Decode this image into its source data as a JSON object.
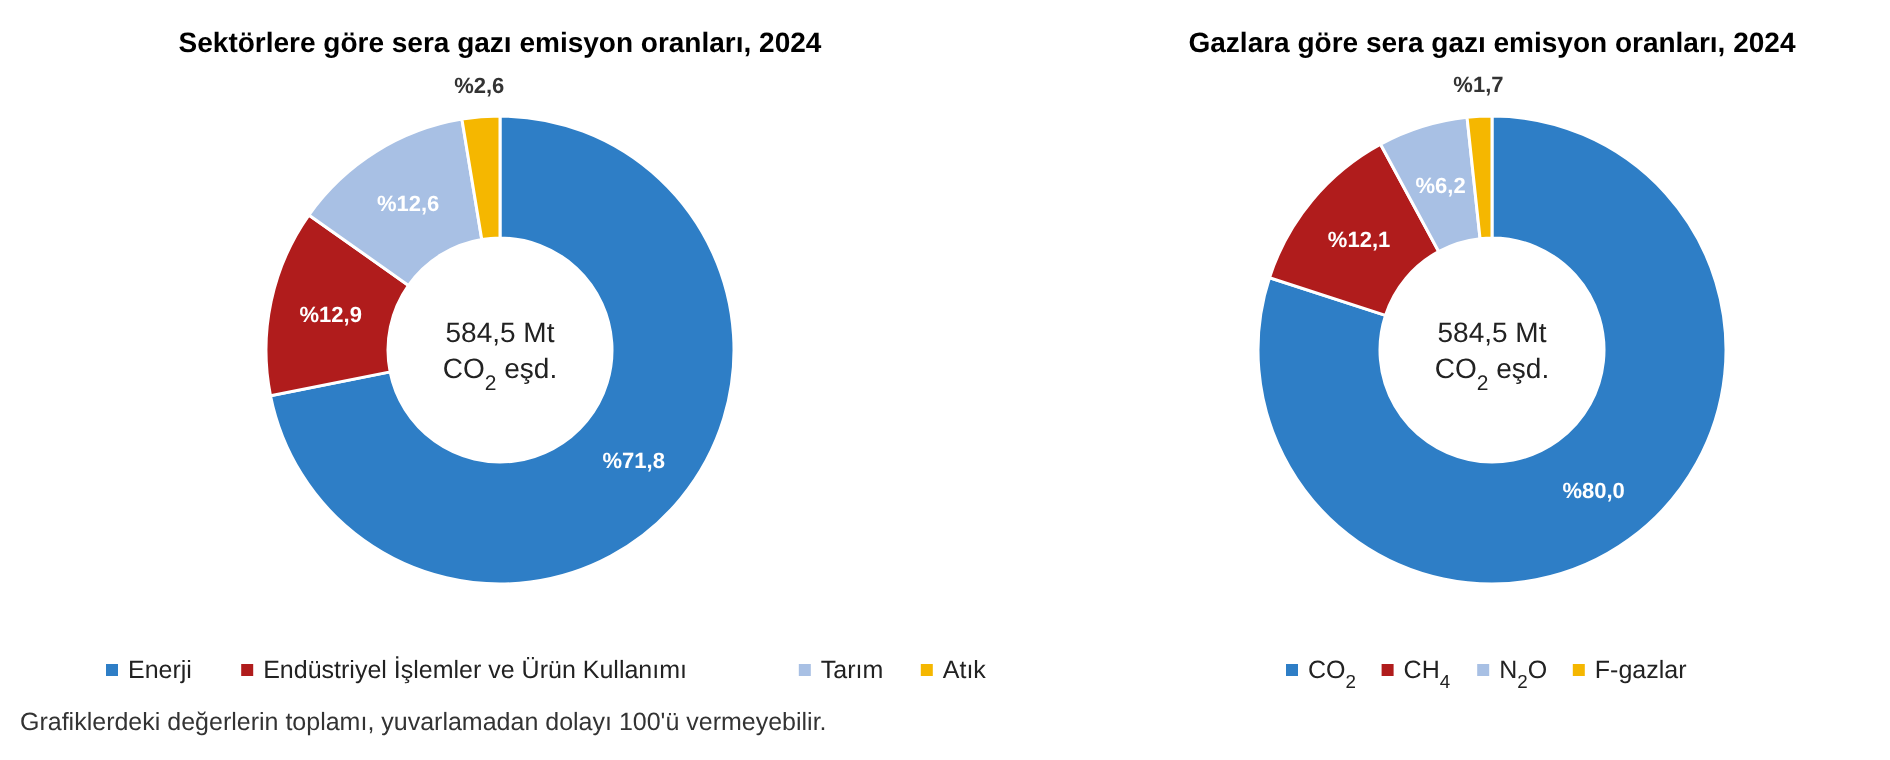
{
  "chart_data": [
    {
      "type": "donut",
      "title": "Sektörlere göre sera gazı emisyon oranları, 2024",
      "categories": [
        "Enerji",
        "Endüstriyel İşlemler ve Ürün Kullanımı",
        "Tarım",
        "Atık"
      ],
      "values": [
        71.8,
        12.9,
        12.6,
        2.6
      ],
      "value_labels": [
        "%71,8",
        "%12,9",
        "%12,6",
        "%2,6"
      ],
      "colors": [
        "#2e7ec6",
        "#b01c1c",
        "#a8c0e4",
        "#f5b700"
      ],
      "legend": "bottom",
      "annotations": [
        "584,5 Mt\nCO$_{2}$ eşd.",
        "Grafiklerdeki değerlerin toplamı, yuvarlamadan dolayı 100'ü vermeyebilir."
      ]
    },
    {
      "type": "donut",
      "title": "Gazlara göre sera gazı emisyon oranları, 2024",
      "categories": [
        "CO$_{2}$",
        "CH$_{4}$",
        "N$_{2}$O",
        "F-gazlar"
      ],
      "values": [
        80.0,
        12.1,
        6.2,
        1.7
      ],
      "value_labels": [
        "%80,0",
        "%12,1",
        "%6,2",
        "%1,7"
      ],
      "colors": [
        "#2e7ec6",
        "#b01c1c",
        "#a8c0e4",
        "#f5b700"
      ],
      "legend": "bottom",
      "annotations": [
        "584,5 Mt\nCO$_{2}$ eşd."
      ]
    }
  ]
}
